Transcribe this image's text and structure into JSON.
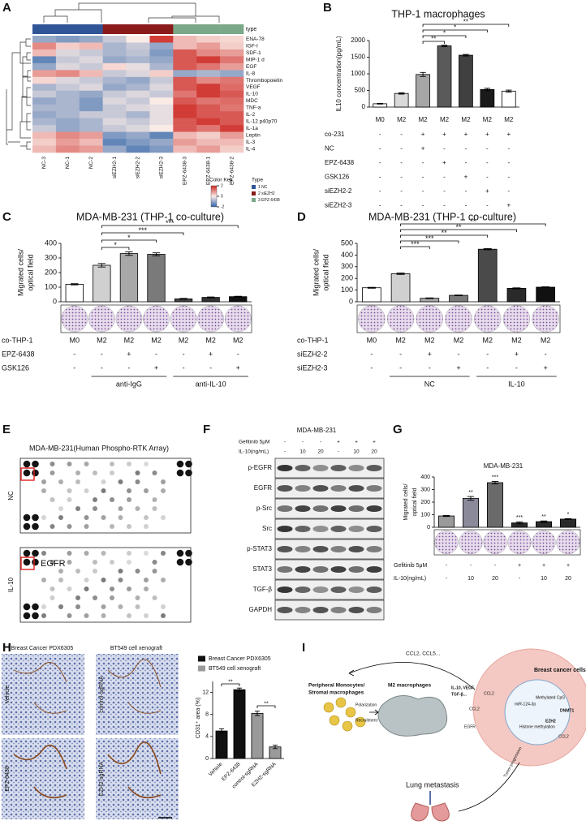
{
  "chart_data": [
    {
      "type": "heatmap",
      "panel": "A",
      "annotation_title": "type",
      "rows": [
        "ENA-78",
        "IGF-I",
        "SDF-1",
        "MIP-1 d",
        "EGF",
        "IL-8",
        "Thrombopoietin",
        "VEGF",
        "IL-10",
        "MDC",
        "TNF-a",
        "IL-2",
        "IL-12 p40p70",
        "IL-1a",
        "Leptin",
        "IL-3",
        "IL-4"
      ],
      "columns": [
        "NC-3",
        "NC-1",
        "NC-2",
        "siEZH2-1",
        "siEZH2-2",
        "siEZH2-3",
        "EPZ-6438-3",
        "EPZ-6438-1",
        "EPZ-6438-2"
      ],
      "values": [
        [
          -1,
          -1.2,
          -1,
          -0.5,
          0,
          1.8,
          0.5,
          0.3,
          0.2
        ],
        [
          1,
          0.3,
          0.5,
          -0.8,
          -0.5,
          -1,
          0.5,
          0.8,
          0.3
        ],
        [
          0.5,
          -0.3,
          -0.5,
          -0.8,
          -0.6,
          -1.2,
          1.5,
          1,
          0.8
        ],
        [
          -1.5,
          -0.5,
          -0.3,
          -1,
          -0.8,
          -1,
          1.5,
          1.8,
          1.2
        ],
        [
          -1,
          -0.3,
          -0.5,
          0.2,
          -0.2,
          -0.8,
          1.5,
          1.2,
          0.8
        ],
        [
          0.8,
          1,
          0.5,
          -0.5,
          -0.3,
          0.3,
          -1,
          -0.8,
          -1
        ],
        [
          0.2,
          -0.3,
          -0.5,
          -0.8,
          -1,
          -0.5,
          1.5,
          1,
          1.2
        ],
        [
          -0.8,
          -0.5,
          -0.3,
          -1,
          -0.8,
          -0.3,
          1.5,
          1.8,
          1.3
        ],
        [
          -0.5,
          -0.8,
          -1,
          -0.5,
          -0.3,
          -0.5,
          1.2,
          1.8,
          1.5
        ],
        [
          -1,
          -0.8,
          -1.2,
          -0.3,
          -0.5,
          0,
          1.5,
          1.2,
          1.3
        ],
        [
          -0.8,
          -0.8,
          -1.2,
          -0.5,
          -0.3,
          -0.2,
          1.8,
          1.5,
          1.2
        ],
        [
          -1,
          -0.8,
          -0.5,
          -0.5,
          -0.8,
          -0.2,
          1.8,
          1.5,
          1.5
        ],
        [
          -0.8,
          -1,
          -0.8,
          -0.3,
          -0.5,
          -0.2,
          1.5,
          1.8,
          1.5
        ],
        [
          -0.5,
          -1,
          -0.8,
          -0.5,
          -0.3,
          0,
          1.5,
          1.2,
          1.8
        ],
        [
          0.5,
          1,
          0.8,
          -1.2,
          -1,
          -1.5,
          0.5,
          0.3,
          0.8
        ],
        [
          0.3,
          0.8,
          0.5,
          -1.5,
          -1.2,
          -1,
          0.8,
          0.5,
          0.5
        ],
        [
          0.5,
          1,
          0.8,
          -1,
          -1.5,
          -1.2,
          0.5,
          0.8,
          0.3
        ]
      ],
      "clim": [
        -2,
        2
      ],
      "color_key_title": "Color Key",
      "color_key_ticks": [
        -2,
        0,
        2
      ],
      "legend_title": "Type",
      "groups": [
        {
          "name": "1 NC",
          "color": "#2f5597"
        },
        {
          "name": "2 siEZH2",
          "color": "#8b1a1a"
        },
        {
          "name": "3 EPZ-6438",
          "color": "#7aa889"
        }
      ]
    },
    {
      "type": "bar",
      "panel": "B",
      "title": "THP-1 macrophages",
      "ylabel": "IL10 concentration(pg/mL)",
      "categories": [
        "M0",
        "M2",
        "M2",
        "M2",
        "M2",
        "M2",
        "M2"
      ],
      "values": [
        100,
        410,
        980,
        1840,
        1560,
        530,
        480
      ],
      "errors": [
        10,
        20,
        60,
        20,
        25,
        35,
        30
      ],
      "colors": [
        "#ffffff",
        "#d9d9d9",
        "#a6a6a6",
        "#5a5a5a",
        "#404040",
        "#1a1a1a",
        "#ffffff"
      ],
      "ylim": [
        0,
        2000
      ],
      "yticks": [
        0,
        500,
        1000,
        1500,
        2000
      ],
      "significance": [
        "**",
        "*",
        "*",
        "**"
      ],
      "conditions": [
        {
          "label": "co-231",
          "values": [
            "-",
            "-",
            "+",
            "+",
            "+",
            "+",
            "+"
          ]
        },
        {
          "label": "NC",
          "values": [
            "-",
            "-",
            "+",
            "-",
            "-",
            "-",
            "-"
          ]
        },
        {
          "label": "EPZ-6438",
          "values": [
            "-",
            "-",
            "-",
            "+",
            "-",
            "-",
            "-"
          ]
        },
        {
          "label": "GSK126",
          "values": [
            "-",
            "-",
            "-",
            "-",
            "+",
            "-",
            "-"
          ]
        },
        {
          "label": "siEZH2-2",
          "values": [
            "-",
            "-",
            "-",
            "-",
            "-",
            "+",
            "-"
          ]
        },
        {
          "label": "siEZH2-3",
          "values": [
            "-",
            "-",
            "-",
            "-",
            "-",
            "-",
            "+"
          ]
        }
      ]
    },
    {
      "type": "bar",
      "panel": "C",
      "title": "MDA-MB-231 (THP-1 co-culture)",
      "ylabel": [
        "Migrated cells/",
        "optical field"
      ],
      "category_label": "co-THP-1",
      "categories": [
        "M0",
        "M2",
        "M2",
        "M2",
        "M2",
        "M2",
        "M2"
      ],
      "values": [
        120,
        250,
        330,
        325,
        20,
        30,
        35
      ],
      "errors": [
        4,
        12,
        12,
        10,
        3,
        3,
        3
      ],
      "colors": [
        "#ffffff",
        "#d0d0d0",
        "#a8a8a8",
        "#7a7a7a",
        "#444444",
        "#333333",
        "#111111"
      ],
      "ylim": [
        0,
        400
      ],
      "yticks": [
        0,
        100,
        200,
        300,
        400
      ],
      "significance": [
        "***",
        "***",
        "*",
        "*"
      ],
      "conditions": [
        {
          "label": "EPZ-6438",
          "values": [
            "-",
            "-",
            "+",
            "-",
            "-",
            "+",
            "-"
          ]
        },
        {
          "label": "GSK126",
          "values": [
            "-",
            "-",
            "-",
            "+",
            "-",
            "-",
            "+"
          ]
        }
      ],
      "groups": [
        "anti-IgG",
        "anti-IL-10"
      ]
    },
    {
      "type": "bar",
      "panel": "D",
      "title": "MDA-MB-231 (THP-1 co-culture)",
      "ylabel": [
        "Migrated cells/",
        "optical field"
      ],
      "category_label": "co-THP-1",
      "categories": [
        "M0",
        "M2",
        "M2",
        "M2",
        "M2",
        "M2",
        "M2"
      ],
      "values": [
        120,
        240,
        30,
        55,
        450,
        115,
        125
      ],
      "errors": [
        4,
        6,
        3,
        3,
        5,
        4,
        3
      ],
      "colors": [
        "#ffffff",
        "#d0d0d0",
        "#a8a8a8",
        "#7a7a7a",
        "#4a4a4a",
        "#2a2a2a",
        "#111111"
      ],
      "ylim": [
        0,
        500
      ],
      "yticks": [
        0,
        100,
        200,
        300,
        400,
        500
      ],
      "significance": [
        "**",
        "**",
        "**",
        "***",
        "***"
      ],
      "conditions": [
        {
          "label": "siEZH2-2",
          "values": [
            "-",
            "-",
            "+",
            "-",
            "-",
            "+",
            "-"
          ]
        },
        {
          "label": "siEZH2-3",
          "values": [
            "-",
            "-",
            "-",
            "+",
            "-",
            "-",
            "+"
          ]
        }
      ],
      "groups": [
        "NC",
        "IL-10"
      ]
    },
    {
      "type": "bar",
      "panel": "G",
      "title": "MDA-MB-231",
      "ylabel": [
        "Migrated cells/",
        "optical field"
      ],
      "values": [
        90,
        230,
        355,
        35,
        45,
        65
      ],
      "errors": [
        4,
        15,
        10,
        8,
        5,
        4
      ],
      "colors": [
        "#9a9a9a",
        "#8a8a9a",
        "#6a6a6a",
        "#2a2a2a",
        "#2a2a2a",
        "#2a2a2a"
      ],
      "ylim": [
        0,
        400
      ],
      "yticks": [
        0,
        100,
        200,
        300,
        400
      ],
      "significance": [
        null,
        "**",
        "***",
        "***",
        "**",
        "*"
      ],
      "conditions": [
        {
          "label": "Gefitinib 5μM",
          "values": [
            "-",
            "-",
            "-",
            "+",
            "+",
            "+"
          ]
        },
        {
          "label": "IL-10(ng/mL)",
          "values": [
            "-",
            "10",
            "20",
            "-",
            "10",
            "20"
          ]
        }
      ]
    },
    {
      "type": "bar",
      "panel": "H",
      "ylabel": "CD31⁺ area (%)",
      "categories": [
        "Vehicle",
        "EPZ-6438",
        "control-sgRNA",
        "EZH2-sgRNA"
      ],
      "series": [
        {
          "name": "Breast Cancer PDX6305",
          "color": "#111111",
          "values": [
            5,
            12.5,
            null,
            null
          ],
          "errors": [
            0.4,
            0.3,
            null,
            null
          ]
        },
        {
          "name": "BT549 cell xenograft",
          "color": "#9a9a9a",
          "values": [
            null,
            null,
            8.2,
            2.1
          ],
          "errors": [
            null,
            null,
            0.4,
            0.3
          ]
        }
      ],
      "ylim": [
        0,
        14
      ],
      "yticks": [
        0,
        4,
        8,
        12
      ],
      "significance": [
        "**",
        "**"
      ]
    }
  ],
  "array": {
    "panel": "E",
    "title": "MDA-MB-231(Human Phospho-RTK Array)",
    "rows": [
      "NC",
      "IL-10"
    ],
    "callout": "EGFR"
  },
  "blot": {
    "panel": "F",
    "title": "MDA-MB-231",
    "conditions": [
      {
        "label": "Gefitinib 5μM",
        "values": [
          "-",
          "-",
          "-",
          "+",
          "+",
          "+"
        ]
      },
      {
        "label": "IL-10(ng/mL)",
        "values": [
          "-",
          "10",
          "20",
          "-",
          "10",
          "20"
        ]
      }
    ],
    "bands": [
      "p-EGFR",
      "EGFR",
      "p-Src",
      "Src",
      "p-STAT3",
      "STAT3",
      "TGF-β",
      "GAPDH"
    ]
  },
  "histology": {
    "panel": "H",
    "column_titles": [
      "Breast Cancer PDX6305",
      "BT549 cell xenograft"
    ],
    "row_labels": [
      "Vehicle",
      "EPZ-6438",
      "control-sgRNA",
      "EZH2-sgRNA"
    ]
  },
  "diagram": {
    "panel": "I",
    "labels": [
      "CCL2, CCL5...",
      "Peripheral Monocytes/",
      "Stromal macrophages",
      "M2 macrophages",
      "Polarization",
      "Recruitment",
      "IL-10, VEGF,",
      "TGF-β...",
      "Breast cancer cells",
      "CCL2",
      "CCL2",
      "miR-124-3p",
      "DNMT1",
      "EZH2",
      "EGFR",
      "CCL2",
      "Lung metastasis",
      "Tumor progression",
      "Methylated CpG",
      "Histone methylation"
    ]
  }
}
